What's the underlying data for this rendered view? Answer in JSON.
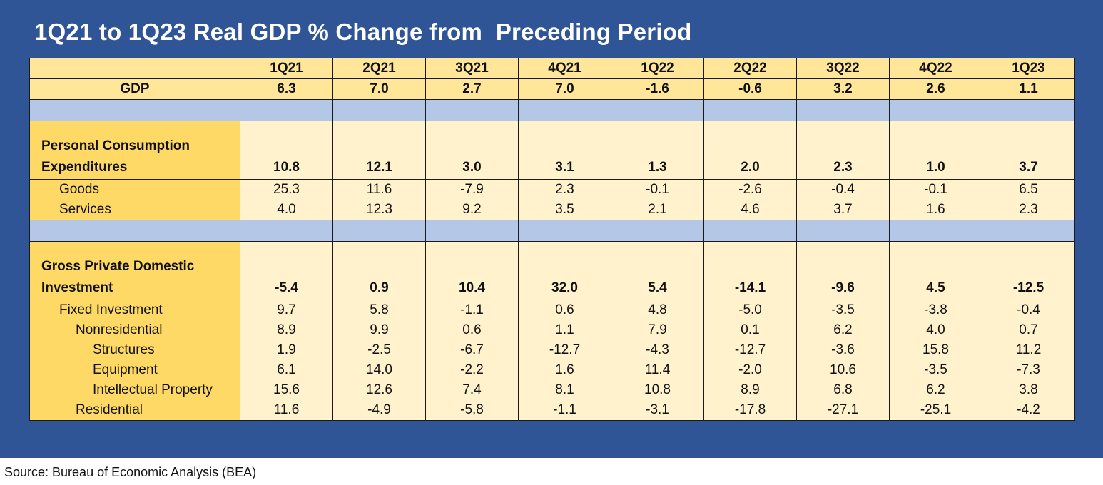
{
  "title": "1Q21 to 1Q23 Real GDP % Change from  Preceding Period",
  "source": "Source: Bureau of Economic Analysis (BEA)",
  "colors": {
    "frame": "#2f5597",
    "header": "#ffe699",
    "label_column": "#ffd966",
    "data_cells": "#fff2cc",
    "spacer": "#b4c7e7"
  },
  "chart_data": {
    "type": "table",
    "columns": [
      "1Q21",
      "2Q21",
      "3Q21",
      "4Q21",
      "1Q22",
      "2Q22",
      "3Q22",
      "4Q22",
      "1Q23"
    ],
    "rows": [
      {
        "label": "GDP",
        "values": [
          "6.3",
          "7.0",
          "2.7",
          "7.0",
          "-1.6",
          "-0.6",
          "3.2",
          "2.6",
          "1.1"
        ]
      },
      {
        "label": "Personal Consumption Expenditures",
        "values": [
          "10.8",
          "12.1",
          "3.0",
          "3.1",
          "1.3",
          "2.0",
          "2.3",
          "1.0",
          "3.7"
        ]
      },
      {
        "label": "Goods",
        "values": [
          "25.3",
          "11.6",
          "-7.9",
          "2.3",
          "-0.1",
          "-2.6",
          "-0.4",
          "-0.1",
          "6.5"
        ]
      },
      {
        "label": "Services",
        "values": [
          "4.0",
          "12.3",
          "9.2",
          "3.5",
          "2.1",
          "4.6",
          "3.7",
          "1.6",
          "2.3"
        ]
      },
      {
        "label": "Gross Private Domestic Investment",
        "values": [
          "-5.4",
          "0.9",
          "10.4",
          "32.0",
          "5.4",
          "-14.1",
          "-9.6",
          "4.5",
          "-12.5"
        ]
      },
      {
        "label": "Fixed Investment",
        "values": [
          "9.7",
          "5.8",
          "-1.1",
          "0.6",
          "4.8",
          "-5.0",
          "-3.5",
          "-3.8",
          "-0.4"
        ]
      },
      {
        "label": "Nonresidential",
        "values": [
          "8.9",
          "9.9",
          "0.6",
          "1.1",
          "7.9",
          "0.1",
          "6.2",
          "4.0",
          "0.7"
        ]
      },
      {
        "label": "Structures",
        "values": [
          "1.9",
          "-2.5",
          "-6.7",
          "-12.7",
          "-4.3",
          "-12.7",
          "-3.6",
          "15.8",
          "11.2"
        ]
      },
      {
        "label": "Equipment",
        "values": [
          "6.1",
          "14.0",
          "-2.2",
          "1.6",
          "11.4",
          "-2.0",
          "10.6",
          "-3.5",
          "-7.3"
        ]
      },
      {
        "label": "Intellectual Property",
        "values": [
          "15.6",
          "12.6",
          "7.4",
          "8.1",
          "10.8",
          "8.9",
          "6.8",
          "6.2",
          "3.8"
        ]
      },
      {
        "label": "Residential",
        "values": [
          "11.6",
          "-4.9",
          "-5.8",
          "-1.1",
          "-3.1",
          "-17.8",
          "-27.1",
          "-25.1",
          "-4.2"
        ]
      }
    ]
  }
}
